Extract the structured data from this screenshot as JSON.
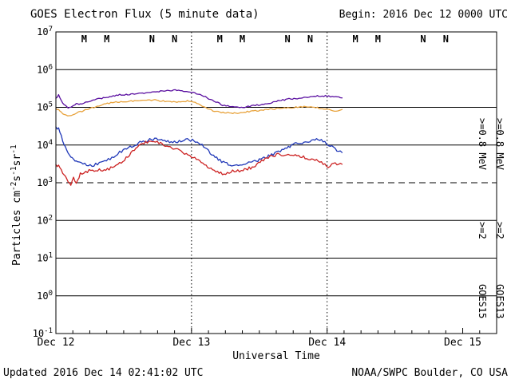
{
  "header": {
    "title": "GOES Electron Flux (5 minute data)",
    "begin_label": "Begin: 2016 Dec 12 0000 UTC"
  },
  "footer": {
    "updated": "Updated 2016 Dec 14 02:41:02 UTC",
    "credit": "NOAA/SWPC Boulder, CO USA"
  },
  "chart_data": {
    "type": "line",
    "title": "GOES Electron Flux (5 minute data)",
    "xlabel": "Universal Time",
    "ylabel": "Particles cm-2s-1sr-1",
    "ylabel_parts": [
      {
        "t": "Particles cm",
        "sup": false
      },
      {
        "t": "-2",
        "sup": true
      },
      {
        "t": "s",
        "sup": false
      },
      {
        "t": "-1",
        "sup": true
      },
      {
        "t": "sr",
        "sup": false
      },
      {
        "t": "-1",
        "sup": true
      }
    ],
    "x_unit": "days since 2016 Dec 12 0000 UTC",
    "y_unit": "log10(particles cm^-2 s^-1 sr^-1)",
    "x_axis": {
      "days_shown": 3.25,
      "minor_tick_hours": 3,
      "ticks": [
        {
          "label": "Dec 12",
          "day": 0
        },
        {
          "label": "Dec 13",
          "day": 1
        },
        {
          "label": "Dec 14",
          "day": 2
        },
        {
          "label": "Dec 15",
          "day": 3
        }
      ]
    },
    "y_axis": {
      "log_max": 7,
      "log_min": -1,
      "exponents": [
        7,
        6,
        5,
        4,
        3,
        2,
        1,
        0,
        -1
      ],
      "threshold_dashed_exponent": 3
    },
    "day_gridlines": [
      1,
      2
    ],
    "grid": true,
    "legend_position": "right-margin-rotated",
    "colors": {
      "purple": "#5A0FA0",
      "orange": "#E8A33D",
      "blue": "#2038B8",
      "red": "#CC2222",
      "frame": "#000000",
      "background": "#FFFFFF"
    },
    "markers": {
      "days": [
        0,
        1,
        2
      ],
      "items": [
        {
          "label": "M",
          "hour": 5,
          "color": "red"
        },
        {
          "label": "M",
          "hour": 9,
          "color": "blue"
        },
        {
          "label": "N",
          "hour": 17,
          "color": "red"
        },
        {
          "label": "N",
          "hour": 21,
          "color": "blue"
        }
      ]
    },
    "right_legend": {
      "col_inner": {
        "e08": ">=0.8 MeV",
        "e08_color": "purple",
        "e2": ">=2",
        "e2_color": "blue",
        "sat": "GOES15"
      },
      "col_outer": {
        "e08": ">=0.8 MeV",
        "e08_color": "orange",
        "e2": ">=2",
        "e2_color": "red",
        "sat": "GOES13"
      }
    },
    "series": [
      {
        "name": "GOES15 >=0.8 MeV",
        "color": "purple",
        "noise": 0.018,
        "points": [
          [
            0,
            5.25
          ],
          [
            0.02,
            5.32
          ],
          [
            0.04,
            5.18
          ],
          [
            0.06,
            5.08
          ],
          [
            0.09,
            4.98
          ],
          [
            0.12,
            5.02
          ],
          [
            0.15,
            5.1
          ],
          [
            0.18,
            5.08
          ],
          [
            0.22,
            5.14
          ],
          [
            0.26,
            5.18
          ],
          [
            0.3,
            5.21
          ],
          [
            0.35,
            5.25
          ],
          [
            0.41,
            5.3
          ],
          [
            0.47,
            5.33
          ],
          [
            0.53,
            5.34
          ],
          [
            0.59,
            5.36
          ],
          [
            0.65,
            5.38
          ],
          [
            0.7,
            5.4
          ],
          [
            0.76,
            5.42
          ],
          [
            0.82,
            5.45
          ],
          [
            0.88,
            5.46
          ],
          [
            0.93,
            5.44
          ],
          [
            1.0,
            5.4
          ],
          [
            1.05,
            5.34
          ],
          [
            1.09,
            5.3
          ],
          [
            1.14,
            5.2
          ],
          [
            1.18,
            5.14
          ],
          [
            1.23,
            5.06
          ],
          [
            1.28,
            5.02
          ],
          [
            1.33,
            5.0
          ],
          [
            1.38,
            5.0
          ],
          [
            1.43,
            5.03
          ],
          [
            1.47,
            5.05
          ],
          [
            1.52,
            5.08
          ],
          [
            1.58,
            5.12
          ],
          [
            1.65,
            5.18
          ],
          [
            1.72,
            5.22
          ],
          [
            1.78,
            5.24
          ],
          [
            1.83,
            5.26
          ],
          [
            1.88,
            5.28
          ],
          [
            1.94,
            5.3
          ],
          [
            2.0,
            5.3
          ],
          [
            2.05,
            5.28
          ],
          [
            2.11,
            5.25
          ]
        ]
      },
      {
        "name": "GOES13 >=0.8 MeV",
        "color": "orange",
        "noise": 0.018,
        "points": [
          [
            0,
            4.98
          ],
          [
            0.03,
            4.9
          ],
          [
            0.06,
            4.82
          ],
          [
            0.1,
            4.77
          ],
          [
            0.14,
            4.83
          ],
          [
            0.18,
            4.88
          ],
          [
            0.23,
            4.95
          ],
          [
            0.28,
            5.0
          ],
          [
            0.33,
            5.05
          ],
          [
            0.38,
            5.1
          ],
          [
            0.43,
            5.13
          ],
          [
            0.48,
            5.15
          ],
          [
            0.53,
            5.16
          ],
          [
            0.58,
            5.17
          ],
          [
            0.63,
            5.19
          ],
          [
            0.68,
            5.2
          ],
          [
            0.73,
            5.19
          ],
          [
            0.78,
            5.17
          ],
          [
            0.83,
            5.15
          ],
          [
            0.88,
            5.14
          ],
          [
            0.93,
            5.15
          ],
          [
            0.97,
            5.17
          ],
          [
            1.0,
            5.17
          ],
          [
            1.04,
            5.1
          ],
          [
            1.08,
            5.02
          ],
          [
            1.12,
            4.96
          ],
          [
            1.17,
            4.9
          ],
          [
            1.22,
            4.87
          ],
          [
            1.28,
            4.85
          ],
          [
            1.34,
            4.85
          ],
          [
            1.4,
            4.88
          ],
          [
            1.46,
            4.9
          ],
          [
            1.53,
            4.93
          ],
          [
            1.59,
            4.95
          ],
          [
            1.65,
            4.97
          ],
          [
            1.71,
            4.98
          ],
          [
            1.77,
            5.0
          ],
          [
            1.83,
            5.02
          ],
          [
            1.88,
            5.01
          ],
          [
            1.94,
            4.98
          ],
          [
            1.99,
            4.96
          ],
          [
            2.04,
            4.9
          ],
          [
            2.08,
            4.92
          ],
          [
            2.11,
            4.94
          ]
        ]
      },
      {
        "name": "GOES15 >=2 MeV",
        "color": "blue",
        "noise": 0.04,
        "points": [
          [
            0,
            4.5
          ],
          [
            0.02,
            4.42
          ],
          [
            0.04,
            4.25
          ],
          [
            0.06,
            4.03
          ],
          [
            0.08,
            3.85
          ],
          [
            0.1,
            3.72
          ],
          [
            0.13,
            3.62
          ],
          [
            0.16,
            3.55
          ],
          [
            0.2,
            3.5
          ],
          [
            0.24,
            3.47
          ],
          [
            0.28,
            3.47
          ],
          [
            0.32,
            3.5
          ],
          [
            0.36,
            3.55
          ],
          [
            0.4,
            3.65
          ],
          [
            0.44,
            3.73
          ],
          [
            0.47,
            3.8
          ],
          [
            0.51,
            3.88
          ],
          [
            0.56,
            3.97
          ],
          [
            0.62,
            4.06
          ],
          [
            0.68,
            4.12
          ],
          [
            0.74,
            4.18
          ],
          [
            0.79,
            4.14
          ],
          [
            0.85,
            4.06
          ],
          [
            0.91,
            4.1
          ],
          [
            0.97,
            4.14
          ],
          [
            1.03,
            4.1
          ],
          [
            1.09,
            3.97
          ],
          [
            1.15,
            3.76
          ],
          [
            1.21,
            3.6
          ],
          [
            1.26,
            3.5
          ],
          [
            1.32,
            3.47
          ],
          [
            1.41,
            3.52
          ],
          [
            1.5,
            3.6
          ],
          [
            1.59,
            3.74
          ],
          [
            1.68,
            3.9
          ],
          [
            1.76,
            4.02
          ],
          [
            1.85,
            4.1
          ],
          [
            1.91,
            4.14
          ],
          [
            1.97,
            4.1
          ],
          [
            2.01,
            4.02
          ],
          [
            2.06,
            3.9
          ],
          [
            2.11,
            3.8
          ]
        ]
      },
      {
        "name": "GOES13 >=2 MeV",
        "color": "red",
        "noise": 0.04,
        "points": [
          [
            0,
            3.5
          ],
          [
            0.03,
            3.4
          ],
          [
            0.06,
            3.23
          ],
          [
            0.09,
            3.02
          ],
          [
            0.11,
            2.94
          ],
          [
            0.13,
            3.14
          ],
          [
            0.15,
            2.98
          ],
          [
            0.18,
            3.23
          ],
          [
            0.22,
            3.3
          ],
          [
            0.27,
            3.32
          ],
          [
            0.32,
            3.33
          ],
          [
            0.38,
            3.35
          ],
          [
            0.43,
            3.42
          ],
          [
            0.47,
            3.5
          ],
          [
            0.53,
            3.7
          ],
          [
            0.59,
            3.92
          ],
          [
            0.65,
            4.06
          ],
          [
            0.71,
            4.12
          ],
          [
            0.76,
            4.06
          ],
          [
            0.82,
            3.97
          ],
          [
            0.91,
            3.85
          ],
          [
            1.0,
            3.7
          ],
          [
            1.06,
            3.6
          ],
          [
            1.12,
            3.4
          ],
          [
            1.18,
            3.3
          ],
          [
            1.24,
            3.23
          ],
          [
            1.29,
            3.3
          ],
          [
            1.38,
            3.33
          ],
          [
            1.47,
            3.44
          ],
          [
            1.53,
            3.6
          ],
          [
            1.59,
            3.7
          ],
          [
            1.65,
            3.76
          ],
          [
            1.7,
            3.7
          ],
          [
            1.74,
            3.76
          ],
          [
            1.79,
            3.7
          ],
          [
            1.85,
            3.66
          ],
          [
            1.91,
            3.6
          ],
          [
            1.97,
            3.5
          ],
          [
            2.01,
            3.44
          ],
          [
            2.06,
            3.52
          ],
          [
            2.11,
            3.49
          ]
        ]
      }
    ]
  }
}
